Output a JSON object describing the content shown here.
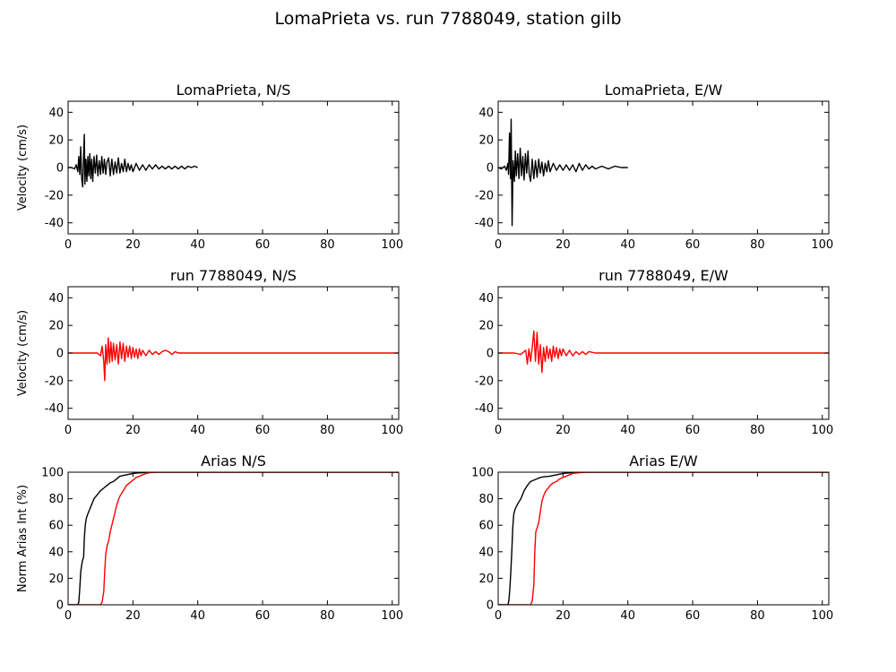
{
  "figure": {
    "suptitle": "LomaPrieta vs. run 7788049, station gilb"
  },
  "colors": {
    "observed": "#000000",
    "simulated": "#ff0000"
  },
  "chart_data": [
    {
      "id": "vel-obs-ns",
      "type": "line",
      "title": "LomaPrieta, N/S",
      "ylabel": "Velocity (cm/s)",
      "xlim": [
        0,
        102
      ],
      "ylim": [
        -48,
        48
      ],
      "xticks": [
        0,
        20,
        40,
        60,
        80,
        100
      ],
      "yticks": [
        -40,
        -20,
        0,
        20,
        40
      ],
      "series": [
        {
          "color": "#000000",
          "x": [
            0,
            1,
            2,
            2.5,
            3,
            3.3,
            3.6,
            3.9,
            4.2,
            4.5,
            4.8,
            5.0,
            5.2,
            5.5,
            5.8,
            6.1,
            6.4,
            6.7,
            7,
            7.3,
            7.6,
            8,
            8.4,
            8.8,
            9.2,
            9.6,
            10,
            10.4,
            10.8,
            11.2,
            11.6,
            12,
            12.5,
            13,
            13.5,
            14,
            14.5,
            15,
            15.5,
            16,
            16.5,
            17,
            17.5,
            18,
            18.5,
            19,
            19.5,
            20,
            21,
            22,
            23,
            24,
            25,
            26,
            27,
            28,
            29,
            30,
            31,
            32,
            33,
            34,
            35,
            36,
            37,
            38,
            39,
            40
          ],
          "y": [
            0,
            0,
            -1,
            2,
            -3,
            8,
            -5,
            15,
            -8,
            -14,
            10,
            24,
            -12,
            6,
            -10,
            8,
            -6,
            10,
            -8,
            6,
            -10,
            8,
            -4,
            9,
            -6,
            5,
            -5,
            8,
            -4,
            6,
            -5,
            4,
            7,
            -6,
            6,
            -5,
            4,
            -4,
            7,
            -4,
            3,
            -3,
            6,
            -3,
            3,
            -2,
            2,
            -3,
            3,
            -2,
            2,
            -2,
            2,
            -1,
            2,
            -1,
            1,
            -1,
            1,
            -1,
            1,
            -1,
            1,
            -1,
            1,
            0,
            1,
            0
          ]
        }
      ]
    },
    {
      "id": "vel-obs-ew",
      "type": "line",
      "title": "LomaPrieta, E/W",
      "ylabel": "",
      "xlim": [
        0,
        102
      ],
      "ylim": [
        -48,
        48
      ],
      "xticks": [
        0,
        20,
        40,
        60,
        80,
        100
      ],
      "yticks": [
        -40,
        -20,
        0,
        20,
        40
      ],
      "series": [
        {
          "color": "#000000",
          "x": [
            0,
            1,
            2,
            2.5,
            3,
            3.2,
            3.5,
            3.8,
            4.0,
            4.3,
            4.6,
            5.0,
            5.3,
            5.6,
            6.0,
            6.4,
            6.8,
            7.2,
            7.6,
            8,
            8.4,
            8.8,
            9.2,
            9.6,
            10,
            10.5,
            11,
            11.5,
            12,
            12.5,
            13,
            13.5,
            14,
            14.5,
            15,
            15.5,
            16,
            17,
            18,
            19,
            20,
            21,
            22,
            23,
            24,
            25,
            26,
            27,
            28,
            29,
            30,
            32,
            34,
            36,
            38,
            40
          ],
          "y": [
            0,
            -1,
            1,
            -2,
            3,
            -5,
            25,
            -8,
            35,
            -42,
            5,
            -10,
            12,
            -6,
            10,
            -8,
            14,
            -6,
            8,
            -9,
            10,
            -4,
            12,
            -5,
            -10,
            6,
            -8,
            5,
            -7,
            6,
            -4,
            4,
            -6,
            3,
            -3,
            5,
            -3,
            3,
            -2,
            2,
            -2,
            2,
            -2,
            2,
            -3,
            3,
            -2,
            2,
            -1,
            1,
            -1,
            1,
            -1,
            1,
            0,
            0
          ]
        }
      ]
    },
    {
      "id": "vel-sim-ns",
      "type": "line",
      "title": "run 7788049, N/S",
      "ylabel": "Velocity (cm/s)",
      "xlim": [
        0,
        102
      ],
      "ylim": [
        -48,
        48
      ],
      "xticks": [
        0,
        20,
        40,
        60,
        80,
        100
      ],
      "yticks": [
        -40,
        -20,
        0,
        20,
        40
      ],
      "series": [
        {
          "color": "#ff0000",
          "x": [
            0,
            5,
            9,
            10,
            10.5,
            11,
            11.3,
            11.6,
            12,
            12.4,
            12.8,
            13.2,
            13.6,
            14,
            14.5,
            15,
            15.5,
            16,
            16.5,
            17,
            17.5,
            18,
            18.5,
            19,
            19.5,
            20,
            20.5,
            21,
            21.5,
            22,
            22.5,
            23,
            24,
            25,
            26,
            27,
            28,
            29,
            30,
            31,
            32,
            33,
            34,
            36,
            40,
            60,
            80,
            102
          ],
          "y": [
            0,
            0,
            0,
            -2,
            5,
            -6,
            -20,
            6,
            -8,
            11,
            -7,
            8,
            -6,
            7,
            -5,
            6,
            -8,
            8,
            -4,
            7,
            -6,
            5,
            -3,
            5,
            -4,
            4,
            -3,
            3,
            -4,
            3,
            -2,
            2,
            -2,
            2,
            -1,
            1,
            -1,
            1,
            2,
            1,
            -1,
            1,
            0,
            0,
            0,
            0,
            0,
            0
          ]
        }
      ]
    },
    {
      "id": "vel-sim-ew",
      "type": "line",
      "title": "run 7788049, E/W",
      "ylabel": "",
      "xlim": [
        0,
        102
      ],
      "ylim": [
        -48,
        48
      ],
      "xticks": [
        0,
        20,
        40,
        60,
        80,
        100
      ],
      "yticks": [
        -40,
        -20,
        0,
        20,
        40
      ],
      "series": [
        {
          "color": "#ff0000",
          "x": [
            0,
            5,
            7,
            8,
            8.5,
            9,
            9.5,
            10,
            10.5,
            11,
            11.5,
            12,
            12.5,
            13,
            13.5,
            14,
            14.5,
            15,
            15.5,
            16,
            16.5,
            17,
            17.5,
            18,
            18.5,
            19,
            19.5,
            20,
            21,
            22,
            23,
            24,
            25,
            26,
            27,
            28,
            30,
            32,
            34,
            40,
            60,
            80,
            102
          ],
          "y": [
            0,
            0,
            -1,
            1,
            2,
            -8,
            3,
            -6,
            4,
            16,
            -6,
            15,
            -8,
            6,
            -14,
            4,
            -6,
            5,
            -4,
            3,
            -6,
            5,
            -3,
            4,
            -4,
            3,
            -2,
            3,
            -2,
            2,
            -2,
            1,
            -1,
            1,
            -1,
            1,
            0,
            0,
            0,
            0,
            0,
            0,
            0
          ]
        }
      ]
    },
    {
      "id": "arias-ns",
      "type": "line",
      "title": "Arias N/S",
      "ylabel": "Norm Arias Int (%)",
      "xlim": [
        0,
        102
      ],
      "ylim": [
        0,
        100
      ],
      "xticks": [
        0,
        20,
        40,
        60,
        80,
        100
      ],
      "yticks": [
        0,
        20,
        40,
        60,
        80,
        100
      ],
      "series": [
        {
          "color": "#000000",
          "x": [
            0,
            3,
            3.3,
            3.6,
            3.9,
            4.2,
            4.5,
            4.8,
            5.0,
            5.3,
            5.6,
            6.0,
            6.5,
            7,
            8,
            9,
            10,
            11,
            12,
            13,
            14,
            15,
            16,
            18,
            20,
            22,
            25,
            30,
            102
          ],
          "y": [
            0,
            0,
            2,
            12,
            25,
            30,
            34,
            36,
            50,
            60,
            65,
            68,
            71,
            74,
            80,
            83,
            86,
            88,
            90,
            92,
            93,
            95,
            97,
            98,
            99,
            99.5,
            100,
            100,
            100
          ]
        },
        {
          "color": "#ff0000",
          "x": [
            0,
            10,
            10.5,
            11,
            11.3,
            11.6,
            12,
            12.5,
            13,
            13.5,
            14,
            14.5,
            15,
            15.5,
            16,
            16.5,
            17,
            17.5,
            18,
            19,
            20,
            21,
            22,
            23,
            24,
            25,
            27,
            30,
            102
          ],
          "y": [
            0,
            0,
            2,
            10,
            25,
            38,
            44,
            48,
            55,
            60,
            65,
            70,
            75,
            79,
            82,
            84,
            86,
            88,
            90,
            92,
            94,
            96,
            97,
            98,
            99,
            99.5,
            100,
            100,
            100
          ]
        }
      ]
    },
    {
      "id": "arias-ew",
      "type": "line",
      "title": "Arias E/W",
      "ylabel": "",
      "xlim": [
        0,
        102
      ],
      "ylim": [
        0,
        100
      ],
      "xticks": [
        0,
        20,
        40,
        60,
        80,
        100
      ],
      "yticks": [
        0,
        20,
        40,
        60,
        80,
        100
      ],
      "series": [
        {
          "color": "#000000",
          "x": [
            0,
            3,
            3.3,
            3.6,
            3.9,
            4.2,
            4.5,
            4.8,
            5.2,
            5.6,
            6,
            6.5,
            7,
            7.5,
            8,
            9,
            10,
            11,
            12,
            13,
            14,
            16,
            18,
            20,
            22,
            24,
            27,
            30,
            102
          ],
          "y": [
            0,
            0,
            3,
            12,
            25,
            40,
            58,
            68,
            72,
            74,
            76,
            78,
            80,
            83,
            86,
            90,
            93,
            94,
            95,
            96,
            96.5,
            97,
            98,
            99,
            99.5,
            99.8,
            100,
            100,
            100
          ]
        },
        {
          "color": "#ff0000",
          "x": [
            0,
            10,
            10.5,
            11,
            11.3,
            11.6,
            12,
            12.5,
            13,
            13.5,
            14,
            14.5,
            15,
            15.5,
            16,
            17,
            18,
            19,
            20,
            21,
            22,
            23,
            24,
            25,
            26,
            28,
            30,
            102
          ],
          "y": [
            0,
            0,
            3,
            15,
            40,
            55,
            58,
            62,
            70,
            78,
            82,
            85,
            87,
            88,
            90,
            92,
            93,
            95,
            96,
            97,
            98,
            99,
            99.3,
            99.6,
            99.8,
            100,
            100,
            100
          ]
        }
      ]
    }
  ]
}
